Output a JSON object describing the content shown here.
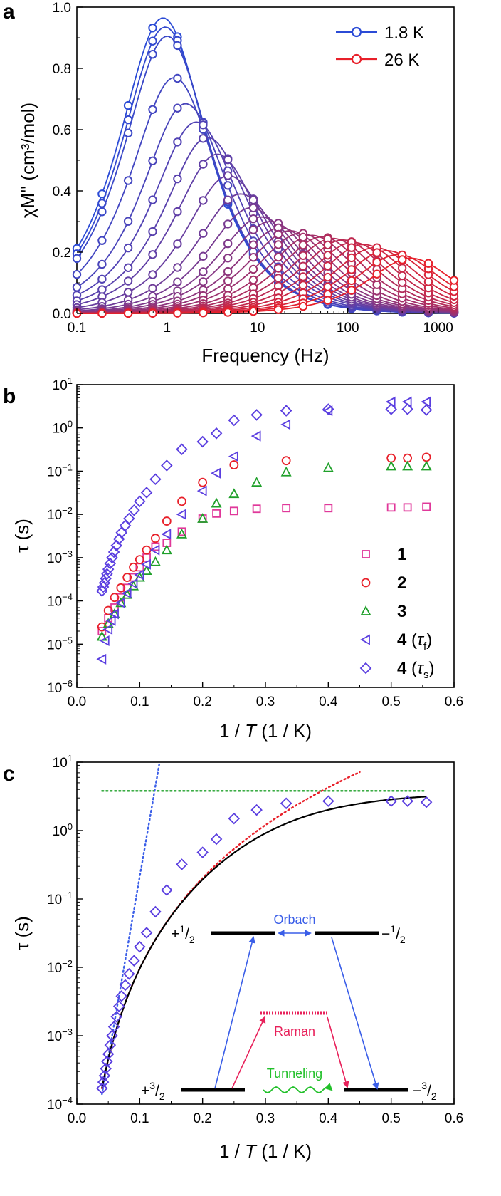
{
  "chart_data": [
    {
      "type": "line",
      "panel_label": "a",
      "xlabel": "Frequency (Hz)",
      "ylabel": "χM'' (cm³/mol)",
      "xscale": "log",
      "xlim": [
        0.1,
        1500
      ],
      "ylim": [
        0,
        1.0
      ],
      "xticks": [
        "0.1",
        "1",
        "10",
        "100",
        "1000"
      ],
      "yticks": [
        "0.0",
        "0.2",
        "0.4",
        "0.6",
        "0.8",
        "1.0"
      ],
      "x": [
        0.1,
        0.19,
        0.37,
        0.69,
        1.3,
        2.5,
        4.7,
        9,
        17,
        32,
        60,
        110,
        210,
        400,
        780,
        1500
      ],
      "legend": [
        {
          "label": "1.8 K",
          "color": "#2b4bd6"
        },
        {
          "label": "26 K",
          "color": "#e8202a"
        }
      ],
      "curves": {
        "count": 26,
        "color_from": "#2b4bd6",
        "color_to": "#e8202a",
        "peak_freq_hz": [
          0.9,
          0.95,
          1.0,
          1.2,
          1.6,
          2.1,
          2.8,
          3.6,
          4.8,
          6.5,
          8.5,
          11,
          14,
          18,
          23,
          30,
          40,
          52,
          68,
          88,
          115,
          150,
          200,
          270,
          360,
          500
        ],
        "peak_height": [
          0.965,
          0.935,
          0.905,
          0.77,
          0.685,
          0.625,
          0.575,
          0.52,
          0.45,
          0.39,
          0.345,
          0.315,
          0.3,
          0.28,
          0.27,
          0.262,
          0.255,
          0.25,
          0.245,
          0.24,
          0.232,
          0.225,
          0.215,
          0.205,
          0.192,
          0.18
        ]
      }
    },
    {
      "type": "scatter",
      "panel_label": "b",
      "xlabel_pre": "1 / ",
      "xlabel_var": "T",
      "xlabel_post": " (1 / K)",
      "ylabel": "τ (s)",
      "yscale": "log",
      "xlim": [
        0,
        0.6
      ],
      "ylim_exp": [
        -6,
        1
      ],
      "xticks": [
        "0.0",
        "0.1",
        "0.2",
        "0.3",
        "0.4",
        "0.5",
        "0.6"
      ],
      "series": [
        {
          "name": "1",
          "marker": "square",
          "color": "#e0389a",
          "x": [
            0.04,
            0.05,
            0.06,
            0.07,
            0.08,
            0.09,
            0.1,
            0.111,
            0.125,
            0.143,
            0.167,
            0.2,
            0.222,
            0.25,
            0.286,
            0.333,
            0.4,
            0.5,
            0.526,
            0.556
          ],
          "y": [
            2e-05,
            4e-05,
            7e-05,
            0.00012,
            0.0002,
            0.00035,
            0.0006,
            0.001,
            0.0018,
            0.0022,
            0.004,
            0.008,
            0.0105,
            0.012,
            0.0135,
            0.014,
            0.014,
            0.0145,
            0.0145,
            0.015
          ]
        },
        {
          "name": "2",
          "marker": "circle",
          "color": "#e8202a",
          "x": [
            0.04,
            0.05,
            0.06,
            0.07,
            0.08,
            0.09,
            0.1,
            0.111,
            0.125,
            0.143,
            0.167,
            0.2,
            0.25,
            0.333,
            0.5,
            0.526,
            0.556
          ],
          "y": [
            2.5e-05,
            6e-05,
            0.00012,
            0.0002,
            0.00035,
            0.0006,
            0.0009,
            0.0015,
            0.0028,
            0.007,
            0.02,
            0.055,
            0.14,
            0.175,
            0.2,
            0.2,
            0.21
          ]
        },
        {
          "name": "3",
          "marker": "triangle-up",
          "color": "#1fa02a",
          "x": [
            0.04,
            0.05,
            0.06,
            0.07,
            0.08,
            0.09,
            0.1,
            0.111,
            0.125,
            0.143,
            0.167,
            0.2,
            0.222,
            0.25,
            0.286,
            0.333,
            0.4,
            0.5,
            0.526,
            0.556
          ],
          "y": [
            1.5e-05,
            3e-05,
            5e-05,
            9e-05,
            0.00014,
            0.00022,
            0.00035,
            0.0005,
            0.0008,
            0.0015,
            0.0035,
            0.008,
            0.018,
            0.03,
            0.055,
            0.095,
            0.12,
            0.13,
            0.13,
            0.13
          ]
        },
        {
          "name": "4 (τf)",
          "marker": "triangle-left",
          "color": "#5a3ee0",
          "x": [
            0.04,
            0.045,
            0.05,
            0.055,
            0.06,
            0.07,
            0.08,
            0.09,
            0.1,
            0.111,
            0.125,
            0.143,
            0.167,
            0.2,
            0.222,
            0.25,
            0.286,
            0.333,
            0.4,
            0.5,
            0.526,
            0.556
          ],
          "y": [
            4.5e-06,
            1.2e-05,
            2.2e-05,
            3.5e-05,
            5e-05,
            9e-05,
            0.00015,
            0.00025,
            0.0004,
            0.0007,
            0.0015,
            0.0035,
            0.01,
            0.035,
            0.09,
            0.22,
            0.65,
            1.2,
            2.5,
            4,
            4,
            4
          ]
        },
        {
          "name": "4 (τs)",
          "marker": "diamond",
          "color": "#5a3ee0",
          "x": [
            0.04,
            0.042,
            0.044,
            0.046,
            0.048,
            0.05,
            0.053,
            0.056,
            0.059,
            0.063,
            0.067,
            0.071,
            0.077,
            0.083,
            0.091,
            0.1,
            0.111,
            0.125,
            0.143,
            0.167,
            0.2,
            0.222,
            0.25,
            0.286,
            0.333,
            0.4,
            0.5,
            0.526,
            0.556
          ],
          "y": [
            0.00017,
            0.00021,
            0.00026,
            0.00033,
            0.00042,
            0.00054,
            0.00073,
            0.001,
            0.00135,
            0.0019,
            0.0027,
            0.0038,
            0.0055,
            0.008,
            0.0125,
            0.02,
            0.032,
            0.065,
            0.135,
            0.32,
            0.48,
            0.75,
            1.5,
            2,
            2.5,
            2.7,
            2.7,
            2.7,
            2.6
          ]
        }
      ],
      "legend_entries": [
        {
          "num": "1",
          "sub": ""
        },
        {
          "num": "2",
          "sub": ""
        },
        {
          "num": "3",
          "sub": ""
        },
        {
          "num": "4",
          "sub": "f"
        },
        {
          "num": "4",
          "sub": "s"
        }
      ]
    },
    {
      "type": "scatter",
      "panel_label": "c",
      "xlabel_pre": "1 / ",
      "xlabel_var": "T",
      "xlabel_post": " (1 / K)",
      "ylabel": "τ (s)",
      "yscale": "log",
      "xlim": [
        0,
        0.6
      ],
      "ylim_exp": [
        -4,
        1
      ],
      "xticks": [
        "0.0",
        "0.1",
        "0.2",
        "0.3",
        "0.4",
        "0.5",
        "0.6"
      ],
      "points": {
        "marker": "diamond",
        "color": "#5a3ee0",
        "x": [
          0.04,
          0.042,
          0.044,
          0.046,
          0.048,
          0.05,
          0.053,
          0.056,
          0.059,
          0.063,
          0.067,
          0.071,
          0.077,
          0.083,
          0.091,
          0.1,
          0.111,
          0.125,
          0.143,
          0.167,
          0.2,
          0.222,
          0.25,
          0.286,
          0.333,
          0.4,
          0.5,
          0.526,
          0.556
        ],
        "y": [
          0.00017,
          0.00021,
          0.00026,
          0.00033,
          0.00042,
          0.00054,
          0.00073,
          0.001,
          0.00135,
          0.0019,
          0.0027,
          0.0038,
          0.0055,
          0.008,
          0.0125,
          0.02,
          0.032,
          0.065,
          0.135,
          0.32,
          0.48,
          0.75,
          1.5,
          2,
          2.5,
          2.7,
          2.7,
          2.7,
          2.6
        ]
      },
      "fits": [
        {
          "kind": "total",
          "style": "solid",
          "color": "#000000"
        },
        {
          "kind": "raman",
          "style": "dotted",
          "color": "#e8202a"
        },
        {
          "kind": "orbach",
          "style": "dotted",
          "color": "#3a5ee8"
        },
        {
          "kind": "tunneling",
          "style": "dotted",
          "color": "#1fa02a",
          "value": 3.8
        }
      ],
      "diagram": {
        "levels": {
          "plus_half": "+1/2",
          "minus_half": "−1/2",
          "plus_three_half": "+3/2",
          "minus_three_half": "−3/2"
        },
        "labels": {
          "orbach": "Orbach",
          "raman": "Raman",
          "tunneling": "Tunneling"
        },
        "colors": {
          "orbach": "#3a5ee8",
          "raman": "#e8205a",
          "tunneling": "#22c02a"
        }
      }
    }
  ]
}
